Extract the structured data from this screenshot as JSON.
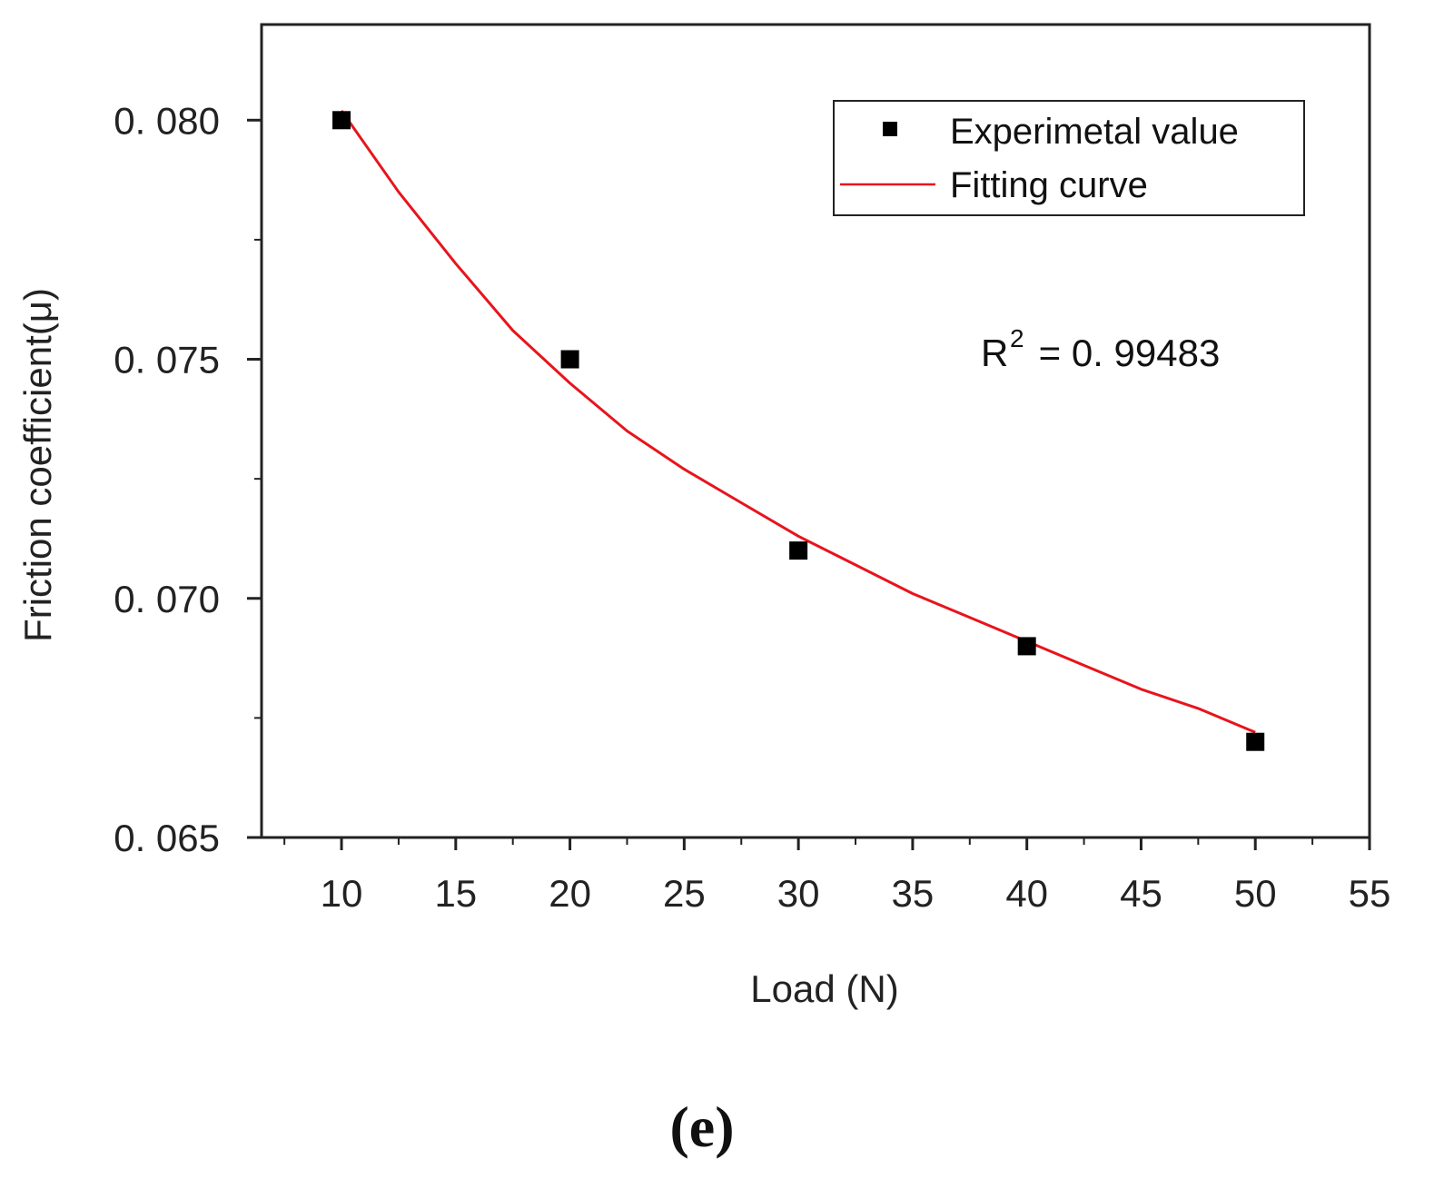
{
  "chart_data": {
    "type": "scatter",
    "title": "",
    "xlabel": "Load (N)",
    "ylabel": "Friction coefficient(μ)",
    "xlim": [
      6.5,
      55
    ],
    "ylim": [
      0.065,
      0.082
    ],
    "xticks": [
      10,
      15,
      20,
      25,
      30,
      35,
      40,
      45,
      50,
      55
    ],
    "xtick_labels": [
      "10",
      "15",
      "20",
      "25",
      "30",
      "35",
      "40",
      "45",
      "50",
      "55"
    ],
    "yticks": [
      0.065,
      0.07,
      0.075,
      0.08
    ],
    "ytick_labels": [
      "0. 065",
      "0. 070",
      "0. 075",
      "0. 080"
    ],
    "grid": false,
    "legend_position": "top-right",
    "series": [
      {
        "name": "Experimetal value",
        "kind": "scatter",
        "marker": "square",
        "color": "#000000",
        "x": [
          10,
          20,
          30,
          40,
          50
        ],
        "y": [
          0.08,
          0.075,
          0.071,
          0.069,
          0.067
        ]
      },
      {
        "name": "Fitting curve",
        "kind": "line",
        "color": "#e8141c",
        "x": [
          10,
          12.5,
          15,
          17.5,
          20,
          22.5,
          25,
          27.5,
          30,
          32.5,
          35,
          37.5,
          40,
          42.5,
          45,
          47.5,
          50
        ],
        "y": [
          0.0802,
          0.0785,
          0.077,
          0.0756,
          0.0745,
          0.0735,
          0.0727,
          0.072,
          0.0713,
          0.0707,
          0.0701,
          0.0696,
          0.0691,
          0.0686,
          0.0681,
          0.0677,
          0.0672
        ]
      }
    ],
    "annotations": [
      {
        "text": "R",
        "superscript": "2",
        "rest": " = 0. 99483"
      }
    ],
    "panel_label": "(e)"
  },
  "colors": {
    "axis": "#222222",
    "fit": "#e8141c",
    "marker": "#000000"
  }
}
